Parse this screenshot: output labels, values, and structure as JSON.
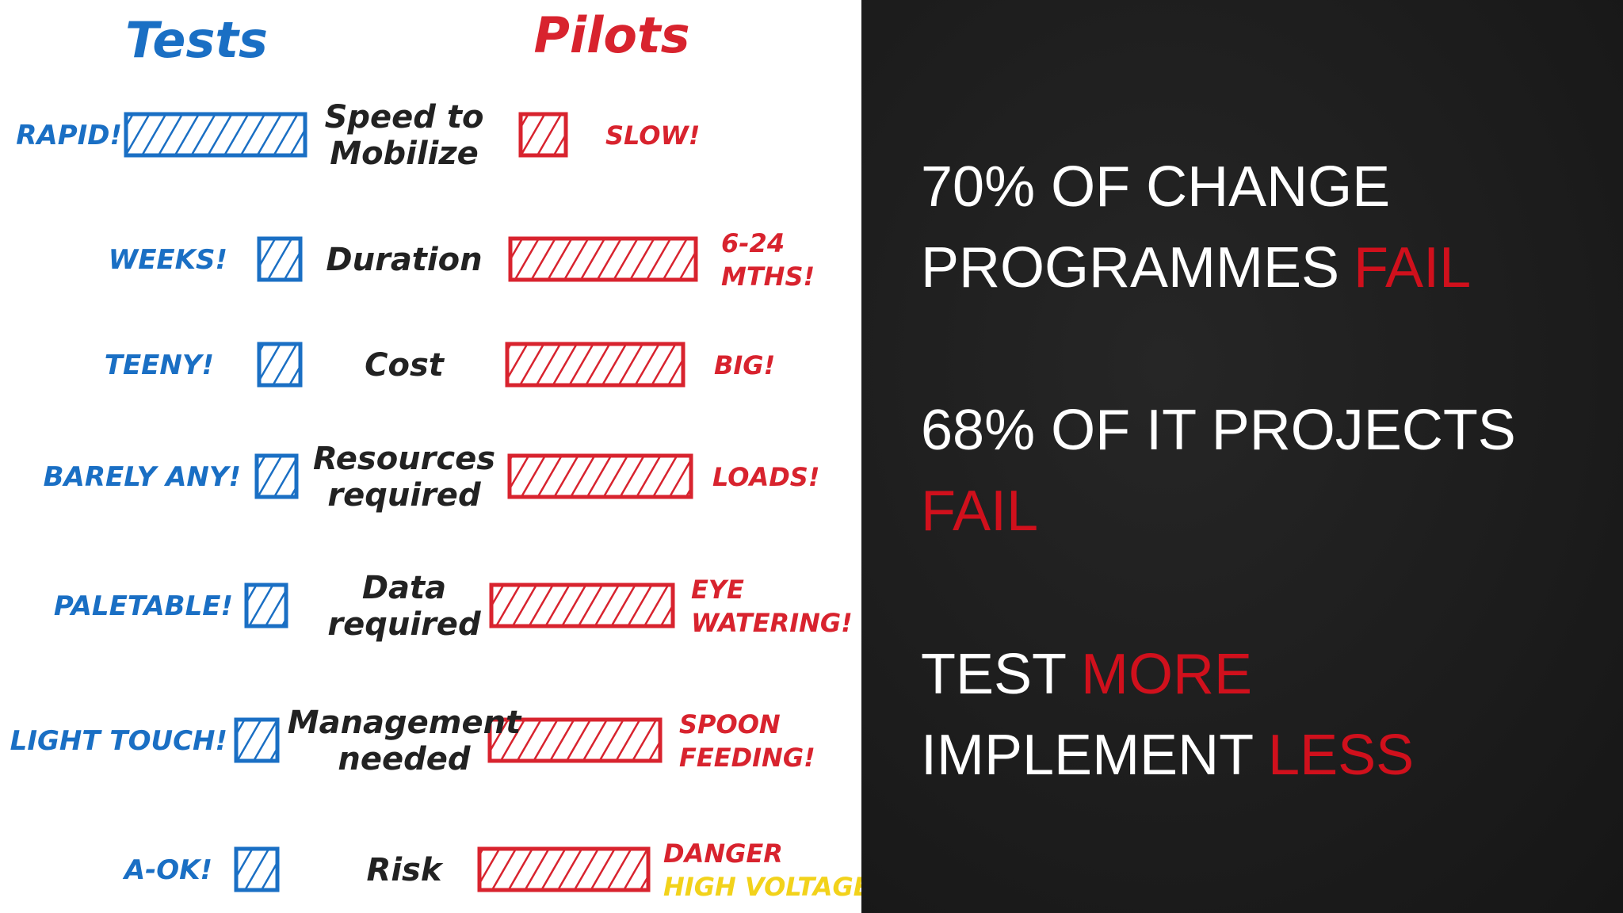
{
  "left": {
    "tests_heading": "Tests",
    "pilots_heading": "Pilots",
    "rows": [
      {
        "test_label": "RAPID!",
        "criterion": [
          "Speed to",
          "Mobilize"
        ],
        "pilot_label": [
          {
            "text": "SLOW!",
            "color": "#d8232e"
          }
        ]
      },
      {
        "test_label": "WEEKS!",
        "criterion": [
          "Duration"
        ],
        "pilot_label": [
          {
            "text": "6-24",
            "color": "#d8232e"
          },
          {
            "text": "MTHS!",
            "color": "#d8232e"
          }
        ]
      },
      {
        "test_label": "TEENY!",
        "criterion": [
          "Cost"
        ],
        "pilot_label": [
          {
            "text": "BIG!",
            "color": "#d8232e"
          }
        ]
      },
      {
        "test_label": "BARELY ANY!",
        "criterion": [
          "Resources",
          "required"
        ],
        "pilot_label": [
          {
            "text": "LOADS!",
            "color": "#d8232e"
          }
        ]
      },
      {
        "test_label": "PALETABLE!",
        "criterion": [
          "Data",
          "required"
        ],
        "pilot_label": [
          {
            "text": "EYE",
            "color": "#d8232e"
          },
          {
            "text": "WATERING!",
            "color": "#d8232e"
          }
        ]
      },
      {
        "test_label": "LIGHT TOUCH!",
        "criterion": [
          "Management",
          "needed"
        ],
        "pilot_label": [
          {
            "text": "SPOON",
            "color": "#d8232e"
          },
          {
            "text": "FEEDING!",
            "color": "#d8232e"
          }
        ]
      },
      {
        "test_label": "A-OK!",
        "criterion": [
          "Risk"
        ],
        "pilot_label": [
          {
            "text": "DANGER",
            "color": "#d8232e"
          },
          {
            "text": "HIGH VOLTAGE!",
            "color": "#f2d21b"
          }
        ]
      }
    ]
  },
  "right": {
    "statements": [
      [
        [
          {
            "text": "70% OF CHANGE",
            "color": "#ffffff"
          }
        ],
        [
          {
            "text": "PROGRAMMES",
            "color": "#ffffff"
          },
          {
            "text": "FAIL",
            "color": "#d0101c"
          }
        ]
      ],
      [
        [
          {
            "text": "68% OF IT PROJECTS",
            "color": "#ffffff"
          }
        ],
        [
          {
            "text": "FAIL",
            "color": "#d0101c"
          }
        ]
      ],
      [
        [
          {
            "text": "TEST",
            "color": "#ffffff"
          },
          {
            "text": "MORE",
            "color": "#d0101c"
          }
        ],
        [
          {
            "text": "IMPLEMENT",
            "color": "#ffffff"
          },
          {
            "text": "LESS",
            "color": "#d0101c"
          }
        ]
      ]
    ]
  }
}
